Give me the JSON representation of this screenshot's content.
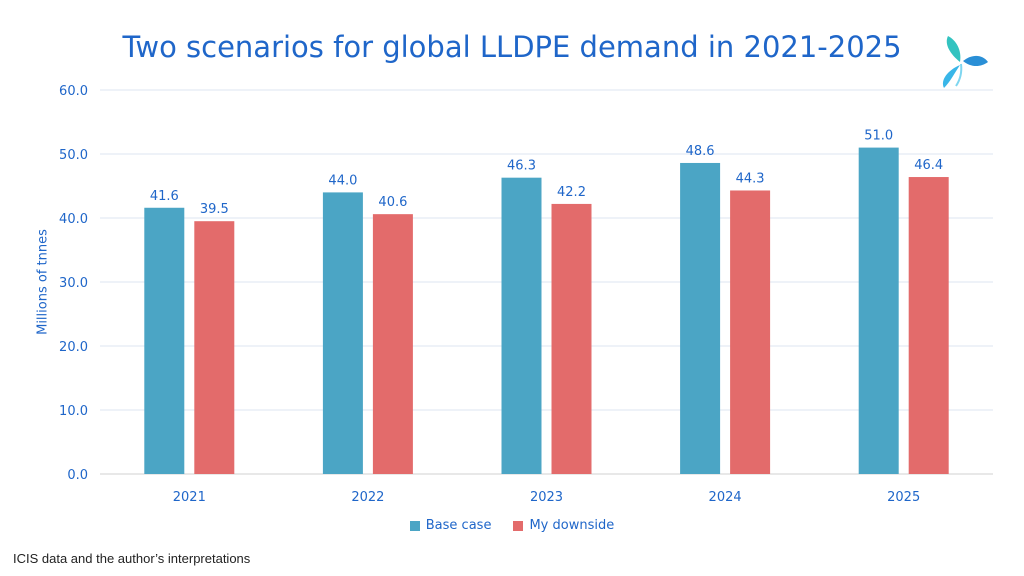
{
  "chart_data": {
    "type": "bar",
    "title": "Two scenarios for global LLDPE demand in 2021-2025",
    "xlabel": "",
    "ylabel": "Millions of tnnes",
    "ylim": [
      0,
      60
    ],
    "yticks": [
      "0.0",
      "10.0",
      "20.0",
      "30.0",
      "40.0",
      "50.0",
      "60.0"
    ],
    "grid": true,
    "legend_position": "bottom",
    "categories": [
      "2021",
      "2022",
      "2023",
      "2024",
      "2025"
    ],
    "series": [
      {
        "name": "Base case",
        "color": "#4ba5c5",
        "values": [
          41.6,
          44.0,
          46.3,
          48.6,
          51.0
        ],
        "labels": [
          "41.6",
          "44.0",
          "46.3",
          "48.6",
          "51.0"
        ]
      },
      {
        "name": "My downside",
        "color": "#e36b6b",
        "values": [
          39.5,
          40.6,
          42.2,
          44.3,
          46.4
        ],
        "labels": [
          "39.5",
          "40.6",
          "42.2",
          "44.3",
          "46.4"
        ]
      }
    ]
  },
  "source_note": "ICIS data and the author’s interpretations",
  "logo_icon": "tri-leaf-logo-icon"
}
